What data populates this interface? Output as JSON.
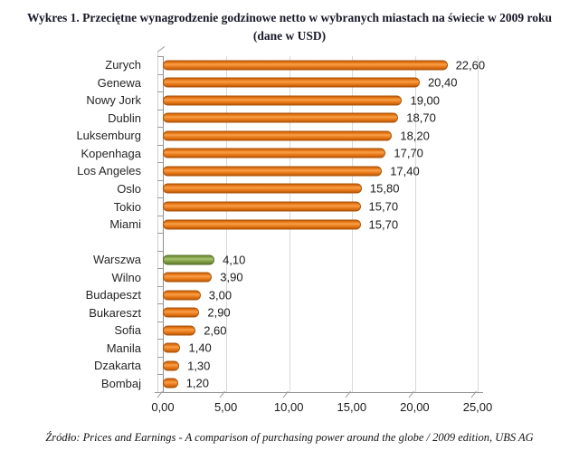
{
  "chart_data": {
    "type": "bar",
    "orientation": "horizontal",
    "title": "Wykres 1. Przeciętne wynagrodzenie godzinowe netto w wybranych miastach na świecie w 2009 roku (dane w USD)",
    "categories": [
      "Zurych",
      "Genewa",
      "Nowy Jork",
      "Dublin",
      "Luksemburg",
      "Kopenhaga",
      "Los Angeles",
      "Oslo",
      "Tokio",
      "Miami",
      "",
      "Warszwa",
      "Wilno",
      "Budapeszt",
      "Bukareszt",
      "Sofia",
      "Manila",
      "Dzakarta",
      "Bombaj"
    ],
    "values": [
      22.6,
      20.4,
      19.0,
      18.7,
      18.2,
      17.7,
      17.4,
      15.8,
      15.7,
      15.7,
      null,
      4.1,
      3.9,
      3.0,
      2.9,
      2.6,
      1.4,
      1.3,
      1.2
    ],
    "value_labels": [
      "22,60",
      "20,40",
      "19,00",
      "18,70",
      "18,20",
      "17,70",
      "17,40",
      "15,80",
      "15,70",
      "15,70",
      "",
      "4,10",
      "3,90",
      "3,00",
      "2,90",
      "2,60",
      "1,40",
      "1,30",
      "1,20"
    ],
    "xlim": [
      0,
      25
    ],
    "x_tick_values": [
      0,
      5,
      10,
      15,
      20,
      25
    ],
    "x_tick_labels": [
      "0,00",
      "5,00",
      "10,00",
      "15,00",
      "20,00",
      "25,00"
    ],
    "grid": true,
    "legend": "none",
    "highlight_category": "Warszwa",
    "colors": {
      "orange": {
        "border": "#AD5408",
        "stops": [
          "#C76110",
          "#EA7B17",
          "#F8A04C",
          "#EE8526",
          "#DF7011",
          "#BA5808"
        ]
      },
      "green": {
        "border": "#55712B",
        "stops": [
          "#6A8834",
          "#8AA74D",
          "#A8C373",
          "#8AA74D",
          "#77943C",
          "#5F7C2F"
        ]
      },
      "gridline": "#d9d9d9",
      "axis": "#8f8f8f"
    }
  },
  "footer": {
    "source": "Źródło: Prices and Earnings - A comparison of purchasing power around the globe / 2009 edition, UBS AG"
  }
}
